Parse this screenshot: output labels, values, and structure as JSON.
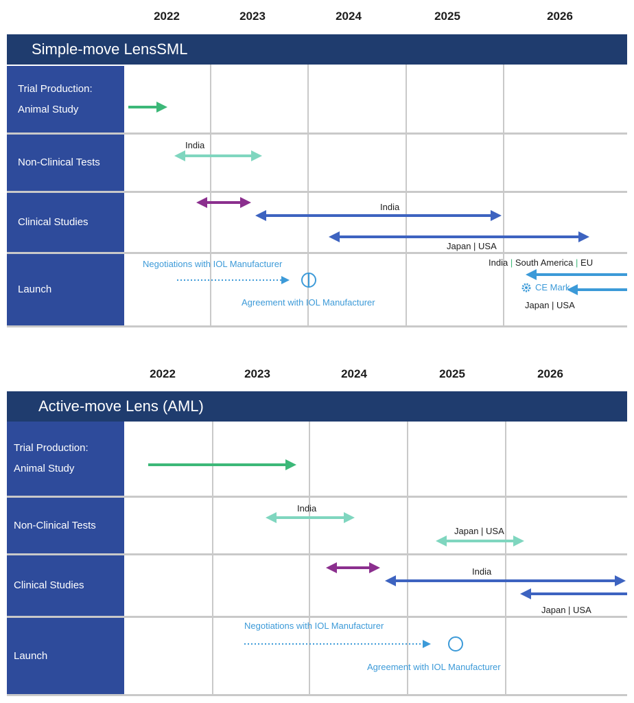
{
  "top": {
    "years": [
      "2022",
      "2023",
      "2024",
      "2025",
      "2026"
    ],
    "title": "Simple-move LensSML",
    "rows": [
      "Trial Production:\nAnimal Study",
      "Non-Clinical Tests",
      "Clinical Studies",
      "Launch"
    ],
    "labels": {
      "nonclinical_india": "India",
      "clinical_india": "India",
      "clinical_japan_usa": "Japan | USA",
      "negotiations": "Negotiations with IOL Manufacturer",
      "agreement": "Agreement with IOL Manufacturer",
      "launch_india": "India",
      "launch_south_america": "South America",
      "launch_eu": "EU",
      "ce_mark": "CE Mark",
      "launch_japan_usa": "Japan | USA"
    }
  },
  "bottom": {
    "years": [
      "2022",
      "2023",
      "2024",
      "2025",
      "2026"
    ],
    "title": "Active-move Lens (AML)",
    "rows": [
      "Trial Production:\nAnimal Study",
      "Non-Clinical Tests",
      "Clinical Studies",
      "Launch"
    ],
    "labels": {
      "nonclinical_india": "India",
      "nonclinical_japan_usa": "Japan | USA",
      "clinical_india": "India",
      "clinical_japan_usa": "Japan | USA",
      "negotiations": "Negotiations with IOL Manufacturer",
      "agreement": "Agreement with IOL Manufacturer"
    }
  },
  "colors": {
    "header": "#1f3c6e",
    "row_label": "#2e4b9b",
    "green_arrow": "#3cb878",
    "teal_arrow": "#7fd6bf",
    "purple_arrow": "#8b2f8e",
    "blue_arrow": "#3d63c0",
    "light_blue": "#3c9ad8"
  },
  "icons": [
    "gear-icon",
    "milestone-circle-icon"
  ]
}
